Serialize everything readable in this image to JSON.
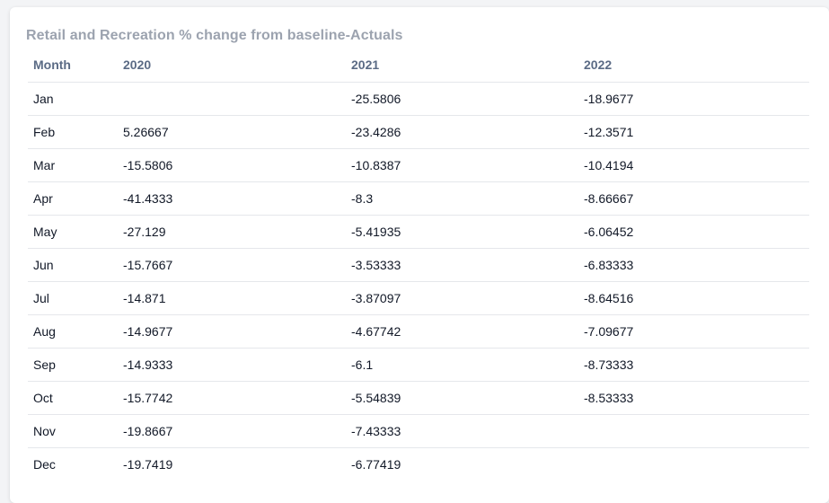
{
  "title": "Retail and Recreation % change from baseline-Actuals",
  "columns": [
    "Month",
    "2020",
    "2021",
    "2022"
  ],
  "rows": [
    [
      "Jan",
      "",
      "-25.5806",
      "-18.9677"
    ],
    [
      "Feb",
      "5.26667",
      "-23.4286",
      "-12.3571"
    ],
    [
      "Mar",
      "-15.5806",
      "-10.8387",
      "-10.4194"
    ],
    [
      "Apr",
      "-41.4333",
      "-8.3",
      "-8.66667"
    ],
    [
      "May",
      "-27.129",
      "-5.41935",
      "-6.06452"
    ],
    [
      "Jun",
      "-15.7667",
      "-3.53333",
      "-6.83333"
    ],
    [
      "Jul",
      "-14.871",
      "-3.87097",
      "-8.64516"
    ],
    [
      "Aug",
      "-14.9677",
      "-4.67742",
      "-7.09677"
    ],
    [
      "Sep",
      "-14.9333",
      "-6.1",
      "-8.73333"
    ],
    [
      "Oct",
      "-15.7742",
      "-5.54839",
      "-8.53333"
    ],
    [
      "Nov",
      "-19.8667",
      "-7.43333",
      ""
    ],
    [
      "Dec",
      "-19.7419",
      "-6.77419",
      ""
    ]
  ],
  "chart_data": {
    "type": "table",
    "title": "Retail and Recreation % change from baseline-Actuals",
    "columns": [
      "Month",
      "2020",
      "2021",
      "2022"
    ],
    "rows": [
      [
        "Jan",
        null,
        -25.5806,
        -18.9677
      ],
      [
        "Feb",
        5.26667,
        -23.4286,
        -12.3571
      ],
      [
        "Mar",
        -15.5806,
        -10.8387,
        -10.4194
      ],
      [
        "Apr",
        -41.4333,
        -8.3,
        -8.66667
      ],
      [
        "May",
        -27.129,
        -5.41935,
        -6.06452
      ],
      [
        "Jun",
        -15.7667,
        -3.53333,
        -6.83333
      ],
      [
        "Jul",
        -14.871,
        -3.87097,
        -8.64516
      ],
      [
        "Aug",
        -14.9677,
        -4.67742,
        -7.09677
      ],
      [
        "Sep",
        -14.9333,
        -6.1,
        -8.73333
      ],
      [
        "Oct",
        -15.7742,
        -5.54839,
        -8.53333
      ],
      [
        "Nov",
        -19.8667,
        -7.43333,
        null
      ],
      [
        "Dec",
        -19.7419,
        -6.77419,
        null
      ]
    ]
  }
}
